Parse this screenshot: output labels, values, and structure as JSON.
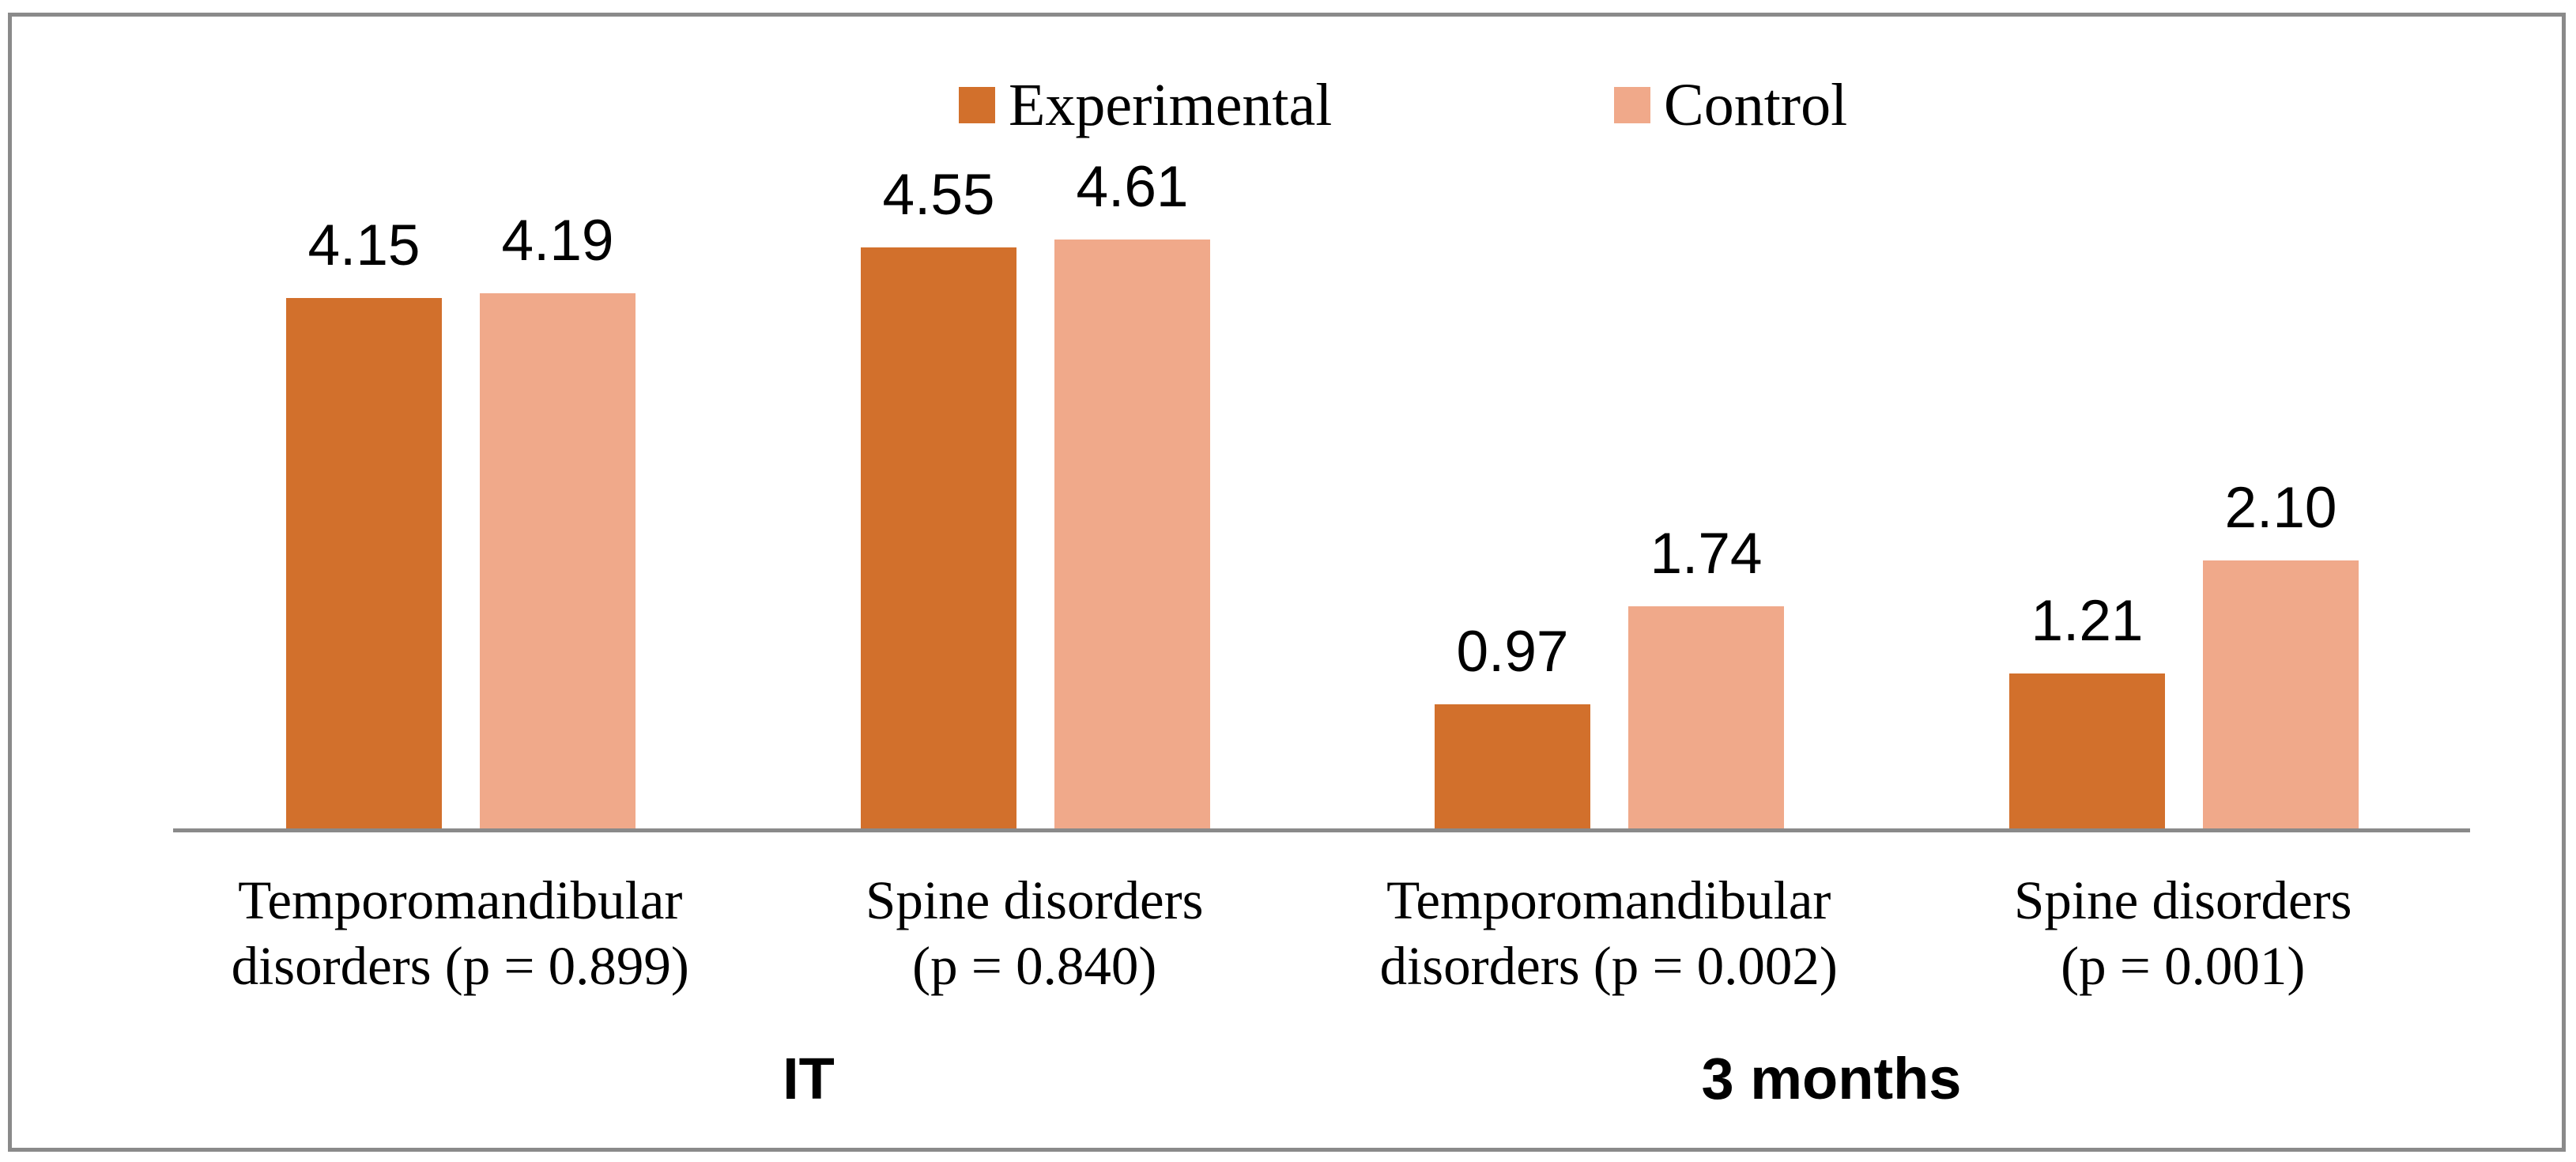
{
  "chart_data": {
    "type": "bar",
    "title": "",
    "xlabel": "",
    "ylabel": "",
    "ylim": [
      0,
      5
    ],
    "grid": false,
    "legend_position": "top-center",
    "value_labels_shown": true,
    "axis_color": "#8A8A8A",
    "categories": [
      {
        "label": "Temporomandibular disorders (p = 0.899)",
        "lines": [
          "Temporomandibular",
          "disorders (p = 0.899)"
        ],
        "group": "IT"
      },
      {
        "label": "Spine disorders (p = 0.840)",
        "lines": [
          "Spine disorders",
          "(p = 0.840)"
        ],
        "group": "IT"
      },
      {
        "label": "Temporomandibular disorders (p = 0.002)",
        "lines": [
          "Temporomandibular",
          "disorders (p = 0.002)"
        ],
        "group": "3 months"
      },
      {
        "label": "Spine disorders (p = 0.001)",
        "lines": [
          "Spine disorders",
          "(p = 0.001)"
        ],
        "group": "3 months"
      }
    ],
    "group_labels": [
      "IT",
      "3 months"
    ],
    "series": [
      {
        "name": "Experimental",
        "color": "#D2702C",
        "values": [
          4.15,
          4.55,
          0.97,
          1.21
        ],
        "value_labels": [
          "4.15",
          "4.55",
          "0.97",
          "1.21"
        ]
      },
      {
        "name": "Control",
        "color": "#F0A98A",
        "values": [
          4.19,
          4.61,
          1.74,
          2.1
        ],
        "value_labels": [
          "4.19",
          "4.61",
          "1.74",
          "2.10"
        ]
      }
    ]
  }
}
